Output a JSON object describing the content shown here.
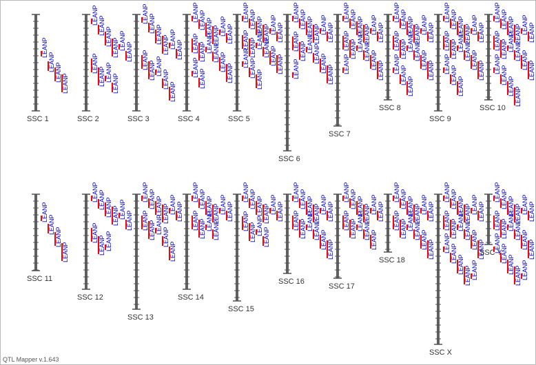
{
  "app": {
    "version_label": "QTL Mapper v.1.643"
  },
  "colors": {
    "background": "#ffffff",
    "chromosome": "#606060",
    "tick": "#505050",
    "qtl_bar": "#ff0000",
    "qtl_text": "#0000cc",
    "label": "#333333"
  },
  "qtl_trait": "LEANP",
  "chromosomes": [
    {
      "name": "SSC 1",
      "row": 1,
      "length": 0.62,
      "qtl": [
        0.43,
        0.55,
        0.62,
        0.7
      ]
    },
    {
      "name": "SSC 2",
      "row": 1,
      "length": 0.62,
      "qtl": [
        0.05,
        0.12,
        0.2,
        0.28,
        0.35,
        0.43,
        0.52,
        0.62,
        0.72,
        0.8
      ]
    },
    {
      "name": "SSC 3",
      "row": 1,
      "length": 0.62,
      "qtl": [
        0.03,
        0.1,
        0.18,
        0.25,
        0.33,
        0.4,
        0.48,
        0.55,
        0.65,
        0.75,
        0.85
      ]
    },
    {
      "name": "SSC 4",
      "row": 1,
      "length": 0.62,
      "qtl": [
        0.02,
        0.06,
        0.1,
        0.14,
        0.18,
        0.22,
        0.28,
        0.33,
        0.38,
        0.44,
        0.5,
        0.58,
        0.66,
        0.74
      ]
    },
    {
      "name": "SSC 5",
      "row": 1,
      "length": 0.62,
      "qtl": [
        0.02,
        0.05,
        0.08,
        0.12,
        0.16,
        0.2,
        0.24,
        0.28,
        0.33,
        0.38,
        0.43,
        0.48,
        0.55,
        0.62,
        0.7
      ]
    },
    {
      "name": "SSC 6",
      "row": 1,
      "length": 0.88,
      "qtl": [
        0.02,
        0.05,
        0.08,
        0.12,
        0.16,
        0.2,
        0.26,
        0.32,
        0.38,
        0.45,
        0.52,
        0.6,
        0.68
      ]
    },
    {
      "name": "SSC 7",
      "row": 1,
      "length": 0.72,
      "qtl": [
        0.02,
        0.05,
        0.08,
        0.12,
        0.16,
        0.2,
        0.25,
        0.3,
        0.36,
        0.42,
        0.48,
        0.55,
        0.62
      ]
    },
    {
      "name": "SSC 8",
      "row": 1,
      "length": 0.55,
      "qtl": [
        0.02,
        0.05,
        0.08,
        0.12,
        0.16,
        0.2,
        0.25,
        0.3,
        0.36,
        0.42,
        0.48,
        0.55,
        0.62,
        0.7,
        0.78
      ]
    },
    {
      "name": "SSC 9",
      "row": 1,
      "length": 0.62,
      "qtl": [
        0.02,
        0.05,
        0.08,
        0.12,
        0.16,
        0.2,
        0.25,
        0.3,
        0.36,
        0.42,
        0.48,
        0.55,
        0.62,
        0.7,
        0.78
      ]
    },
    {
      "name": "SSC 10",
      "row": 1,
      "length": 0.55,
      "qtl": [
        0.02,
        0.05,
        0.08,
        0.12,
        0.16,
        0.2,
        0.25,
        0.3,
        0.36,
        0.42,
        0.48,
        0.55,
        0.62,
        0.7,
        0.78,
        0.86
      ]
    },
    {
      "name": "SSC 11",
      "row": 2,
      "length": 0.5,
      "qtl": [
        0.25,
        0.35,
        0.45,
        0.58
      ]
    },
    {
      "name": "SSC 12",
      "row": 2,
      "length": 0.62,
      "qtl": [
        0.02,
        0.06,
        0.1,
        0.15,
        0.22,
        0.3,
        0.4,
        0.5,
        0.6
      ]
    },
    {
      "name": "SSC 13",
      "row": 2,
      "length": 0.75,
      "qtl": [
        0.02,
        0.05,
        0.08,
        0.12,
        0.16,
        0.2,
        0.25,
        0.32,
        0.4,
        0.5,
        0.62
      ]
    },
    {
      "name": "SSC 14",
      "row": 2,
      "length": 0.62,
      "qtl": [
        0.02,
        0.05,
        0.08,
        0.12,
        0.16,
        0.2,
        0.25,
        0.3,
        0.36,
        0.42
      ]
    },
    {
      "name": "SSC 15",
      "row": 2,
      "length": 0.7,
      "qtl": [
        0.02,
        0.05,
        0.08,
        0.12,
        0.16,
        0.2,
        0.26,
        0.34,
        0.42,
        0.5
      ]
    },
    {
      "name": "SSC 16",
      "row": 2,
      "length": 0.52,
      "qtl": [
        0.02,
        0.05,
        0.08,
        0.12,
        0.16,
        0.2,
        0.25,
        0.3,
        0.36,
        0.42,
        0.48,
        0.55
      ]
    },
    {
      "name": "SSC 17",
      "row": 2,
      "length": 0.55,
      "qtl": [
        0.02,
        0.05,
        0.08,
        0.12,
        0.16,
        0.2,
        0.25,
        0.3,
        0.36,
        0.42,
        0.48
      ]
    },
    {
      "name": "SSC 18",
      "row": 2,
      "length": 0.38,
      "qtl": [
        0.02,
        0.05,
        0.08,
        0.12,
        0.16,
        0.2,
        0.25,
        0.3,
        0.36,
        0.42,
        0.48,
        0.55
      ]
    },
    {
      "name": "SSC X",
      "row": 2,
      "length": 0.98,
      "qtl": [
        0.02,
        0.05,
        0.08,
        0.12,
        0.16,
        0.2,
        0.25,
        0.3,
        0.36,
        0.42,
        0.48,
        0.55,
        0.62,
        0.7,
        0.78,
        0.86,
        0.94
      ]
    },
    {
      "name": "SSC Y",
      "row": 2,
      "length": 0.33,
      "qtl": [
        0.02,
        0.05,
        0.08,
        0.12,
        0.16,
        0.2,
        0.25,
        0.3,
        0.36,
        0.42,
        0.48,
        0.55,
        0.62,
        0.7,
        0.78,
        0.86,
        0.94
      ]
    }
  ]
}
